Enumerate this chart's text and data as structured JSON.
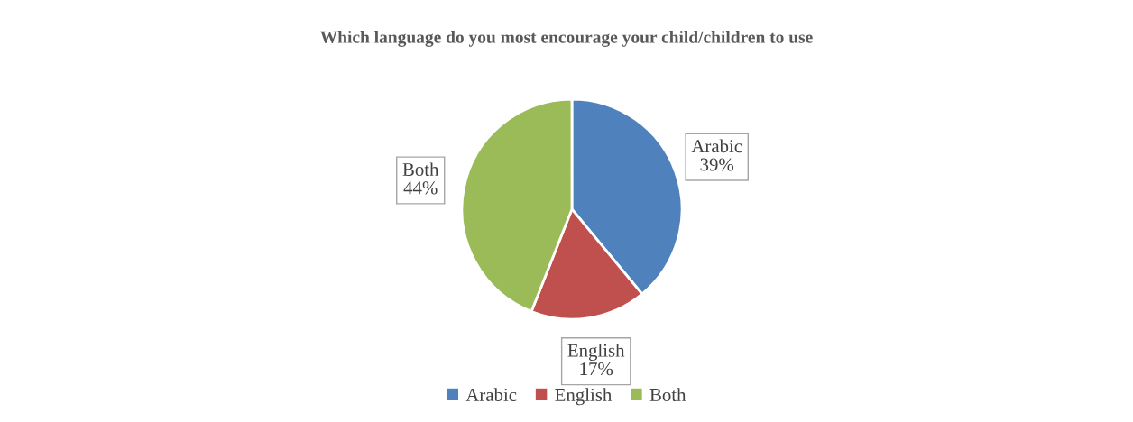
{
  "chart_data": {
    "type": "pie",
    "title": "Which language do you most encourage your child/children to use",
    "categories": [
      "Arabic",
      "English",
      "Both"
    ],
    "values": [
      39,
      17,
      44
    ],
    "colors": [
      "#4f81bd",
      "#c0504d",
      "#9bbb59"
    ],
    "value_labels": [
      "39%",
      "17%",
      "44%"
    ],
    "legend": "bottom"
  }
}
